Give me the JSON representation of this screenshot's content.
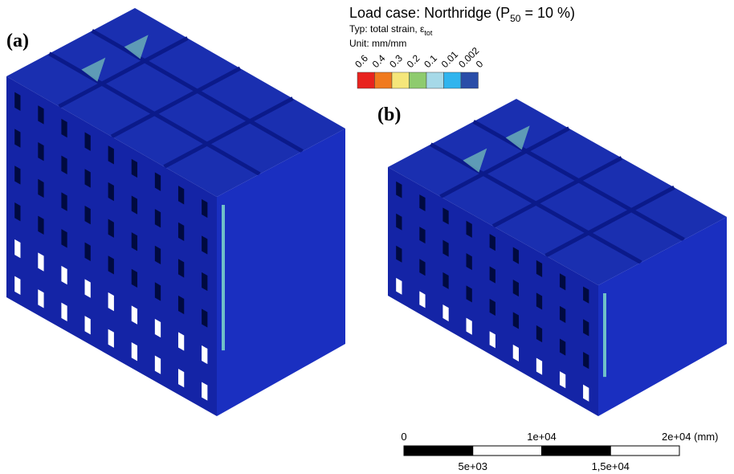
{
  "panels": [
    {
      "label": "(a)"
    },
    {
      "label": "(b)"
    }
  ],
  "header": {
    "title_main": "Load case: Northridge (P",
    "title_sub": "50",
    "title_end": " = 10 %)",
    "type_main": "Typ: total strain, ε",
    "type_sub": "tot",
    "unit": "Unit: mm/mm"
  },
  "legend": {
    "labels": [
      "0.6",
      "0.4",
      "0.3",
      "0.2",
      "0.1",
      "0.01",
      "0.002",
      "0"
    ],
    "colors": [
      "#e8231e",
      "#f07a1e",
      "#f5e67a",
      "#8ecb6e",
      "#a6d9e8",
      "#30b4ee",
      "#2a4da8"
    ]
  },
  "scale_bar": {
    "top_labels": [
      "0",
      "1e+04",
      "2e+04 (mm)"
    ],
    "bottom_labels": [
      "5e+03",
      "1,5e+04"
    ]
  }
}
